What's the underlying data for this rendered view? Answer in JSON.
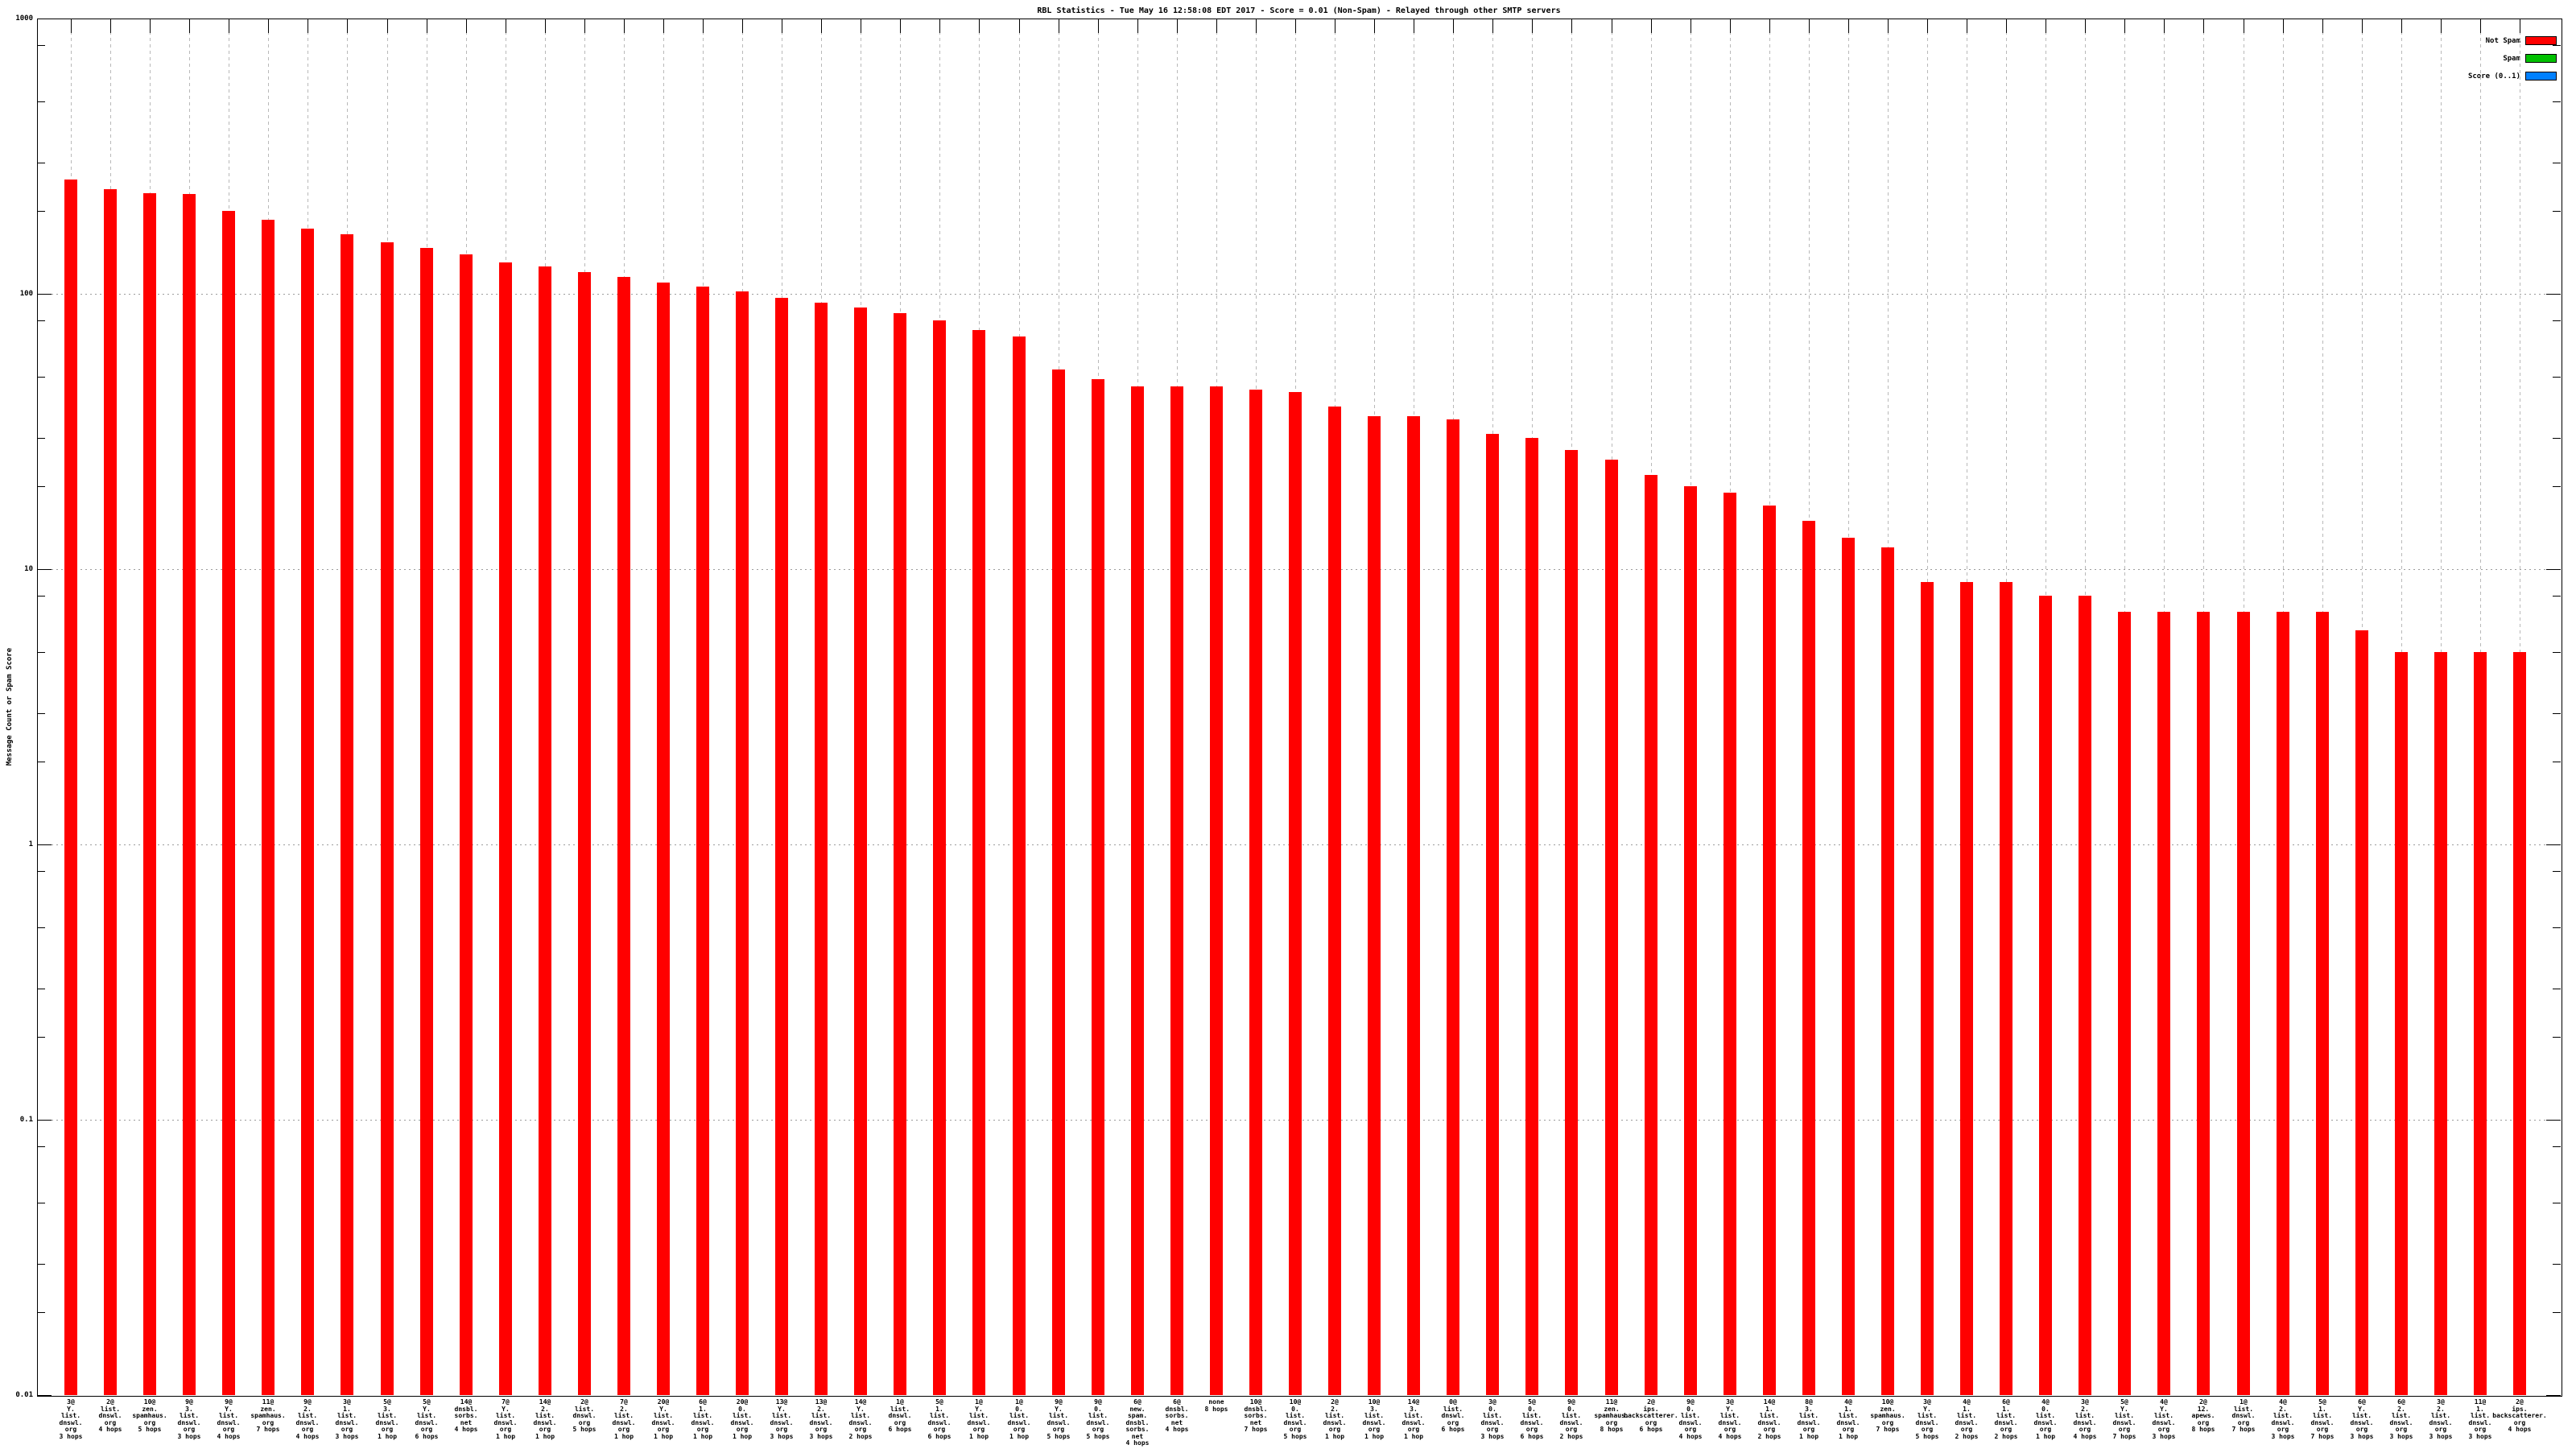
{
  "meta": {
    "background": "#ffffff"
  },
  "chart_data": {
    "type": "bar",
    "title": "RBL Statistics - Tue May 16 12:58:08 EDT 2017 - Score = 0.01 (Non-Spam) - Relayed through other SMTP servers",
    "ylabel": "Message Count or Spam Score",
    "y_scale": "log",
    "ylim": [
      0.01,
      1000
    ],
    "y_major_ticks": [
      "1000",
      "100",
      "10",
      "1",
      "0.1",
      "0.01"
    ],
    "y_minor_multipliers": [
      2,
      3,
      5,
      8
    ],
    "grid": true,
    "legend_position": "top-right-inside",
    "bar_color": "#ff0000",
    "legend": [
      {
        "label": "Not Spam",
        "color": "#ff0000"
      },
      {
        "label": "Spam",
        "color": "#00c000"
      },
      {
        "label": "Score (0..1)",
        "color": "#0080ff"
      }
    ],
    "bars": [
      {
        "lines": [
          "3@",
          "Y.",
          "list.",
          "dnswl.",
          "org",
          "3 hops"
        ],
        "value": 260
      },
      {
        "lines": [
          "2@",
          "list.",
          "dnswl.",
          "org",
          "4 hops"
        ],
        "value": 240
      },
      {
        "lines": [
          "10@",
          "zen.",
          "spamhaus.",
          "org",
          "5 hops"
        ],
        "value": 232
      },
      {
        "lines": [
          "9@",
          "3.",
          "list.",
          "dnswl.",
          "org",
          "3 hops"
        ],
        "value": 230
      },
      {
        "lines": [
          "9@",
          "Y.",
          "list.",
          "dnswl.",
          "org",
          "4 hops"
        ],
        "value": 200
      },
      {
        "lines": [
          "11@",
          "zen.",
          "spamhaus.",
          "org",
          "7 hops"
        ],
        "value": 186
      },
      {
        "lines": [
          "9@",
          "2.",
          "list.",
          "dnswl.",
          "org",
          "4 hops"
        ],
        "value": 172
      },
      {
        "lines": [
          "3@",
          "1.",
          "list.",
          "dnswl.",
          "org",
          "3 hops"
        ],
        "value": 165
      },
      {
        "lines": [
          "5@",
          "3.",
          "list.",
          "dnswl.",
          "org",
          "1 hop"
        ],
        "value": 154
      },
      {
        "lines": [
          "5@",
          "Y.",
          "list.",
          "dnswl.",
          "org",
          "6 hops"
        ],
        "value": 147
      },
      {
        "lines": [
          "14@",
          "dnsbl.",
          "sorbs.",
          "net",
          "4 hops"
        ],
        "value": 139
      },
      {
        "lines": [
          "7@",
          "Y.",
          "list.",
          "dnswl.",
          "org",
          "1 hop"
        ],
        "value": 130
      },
      {
        "lines": [
          "14@",
          "2.",
          "list.",
          "dnswl.",
          "org",
          "1 hop"
        ],
        "value": 126
      },
      {
        "lines": [
          "2@",
          "list.",
          "dnswl.",
          "org",
          "5 hops"
        ],
        "value": 120
      },
      {
        "lines": [
          "7@",
          "2.",
          "list.",
          "dnswl.",
          "org",
          "1 hop"
        ],
        "value": 115
      },
      {
        "lines": [
          "20@",
          "Y.",
          "list.",
          "dnswl.",
          "org",
          "1 hop"
        ],
        "value": 110
      },
      {
        "lines": [
          "6@",
          "1.",
          "list.",
          "dnswl.",
          "org",
          "1 hop"
        ],
        "value": 106
      },
      {
        "lines": [
          "20@",
          "0.",
          "list.",
          "dnswl.",
          "org",
          "1 hop"
        ],
        "value": 102
      },
      {
        "lines": [
          "13@",
          "Y.",
          "list.",
          "dnswl.",
          "org",
          "3 hops"
        ],
        "value": 97
      },
      {
        "lines": [
          "13@",
          "2.",
          "list.",
          "dnswl.",
          "org",
          "3 hops"
        ],
        "value": 93
      },
      {
        "lines": [
          "14@",
          "Y.",
          "list.",
          "dnswl.",
          "org",
          "2 hops"
        ],
        "value": 89
      },
      {
        "lines": [
          "1@",
          "list.",
          "dnswl.",
          "org",
          "6 hops"
        ],
        "value": 85
      },
      {
        "lines": [
          "5@",
          "1.",
          "list.",
          "dnswl.",
          "org",
          "6 hops"
        ],
        "value": 80
      },
      {
        "lines": [
          "1@",
          "Y.",
          "list.",
          "dnswl.",
          "org",
          "1 hop"
        ],
        "value": 74
      },
      {
        "lines": [
          "1@",
          "0.",
          "list.",
          "dnswl.",
          "org",
          "1 hop"
        ],
        "value": 70
      },
      {
        "lines": [
          "9@",
          "Y.",
          "list.",
          "dnswl.",
          "org",
          "5 hops"
        ],
        "value": 53
      },
      {
        "lines": [
          "9@",
          "0.",
          "list.",
          "dnswl.",
          "org",
          "5 hops"
        ],
        "value": 49
      },
      {
        "lines": [
          "6@",
          "new.",
          "spam.",
          "dnsbl.",
          "sorbs.",
          "net",
          "4 hops"
        ],
        "value": 46
      },
      {
        "lines": [
          "6@",
          "dnsbl.",
          "sorbs.",
          "net",
          "4 hops"
        ],
        "value": 46
      },
      {
        "lines": [
          "none",
          "8 hops"
        ],
        "value": 46
      },
      {
        "lines": [
          "10@",
          "dnsbl.",
          "sorbs.",
          "net",
          "7 hops"
        ],
        "value": 45
      },
      {
        "lines": [
          "10@",
          "0.",
          "list.",
          "dnswl.",
          "org",
          "5 hops"
        ],
        "value": 44
      },
      {
        "lines": [
          "2@",
          "2.",
          "list.",
          "dnswl.",
          "org",
          "1 hop"
        ],
        "value": 39
      },
      {
        "lines": [
          "10@",
          "3.",
          "list.",
          "dnswl.",
          "org",
          "1 hop"
        ],
        "value": 36
      },
      {
        "lines": [
          "14@",
          "3.",
          "list.",
          "dnswl.",
          "org",
          "1 hop"
        ],
        "value": 36
      },
      {
        "lines": [
          "0@",
          "list.",
          "dnswl.",
          "org",
          "6 hops"
        ],
        "value": 35
      },
      {
        "lines": [
          "3@",
          "0.",
          "list.",
          "dnswl.",
          "org",
          "3 hops"
        ],
        "value": 31
      },
      {
        "lines": [
          "5@",
          "0.",
          "list.",
          "dnswl.",
          "org",
          "6 hops"
        ],
        "value": 30
      },
      {
        "lines": [
          "9@",
          "0.",
          "list.",
          "dnswl.",
          "org",
          "2 hops"
        ],
        "value": 27
      },
      {
        "lines": [
          "11@",
          "zen.",
          "spamhaus.",
          "org",
          "8 hops"
        ],
        "value": 25
      },
      {
        "lines": [
          "2@",
          "ips.",
          "backscatterer.",
          "org",
          "6 hops"
        ],
        "value": 22
      },
      {
        "lines": [
          "9@",
          "0.",
          "list.",
          "dnswl.",
          "org",
          "4 hops"
        ],
        "value": 20
      },
      {
        "lines": [
          "3@",
          "Y.",
          "list.",
          "dnswl.",
          "org",
          "4 hops"
        ],
        "value": 19
      },
      {
        "lines": [
          "14@",
          "1.",
          "list.",
          "dnswl.",
          "org",
          "2 hops"
        ],
        "value": 17
      },
      {
        "lines": [
          "8@",
          "3.",
          "list.",
          "dnswl.",
          "org",
          "1 hop"
        ],
        "value": 15
      },
      {
        "lines": [
          "4@",
          "1.",
          "list.",
          "dnswl.",
          "org",
          "1 hop"
        ],
        "value": 13
      },
      {
        "lines": [
          "10@",
          "zen.",
          "spamhaus.",
          "org",
          "7 hops"
        ],
        "value": 12
      },
      {
        "lines": [
          "3@",
          "Y.",
          "list.",
          "dnswl.",
          "org",
          "5 hops"
        ],
        "value": 9
      },
      {
        "lines": [
          "4@",
          "1.",
          "list.",
          "dnswl.",
          "org",
          "2 hops"
        ],
        "value": 9
      },
      {
        "lines": [
          "6@",
          "1.",
          "list.",
          "dnswl.",
          "org",
          "2 hops"
        ],
        "value": 9
      },
      {
        "lines": [
          "4@",
          "0.",
          "list.",
          "dnswl.",
          "org",
          "1 hop"
        ],
        "value": 8
      },
      {
        "lines": [
          "3@",
          "2.",
          "list.",
          "dnswl.",
          "org",
          "4 hops"
        ],
        "value": 8
      },
      {
        "lines": [
          "5@",
          "Y.",
          "list.",
          "dnswl.",
          "org",
          "7 hops"
        ],
        "value": 7
      },
      {
        "lines": [
          "4@",
          "Y.",
          "list.",
          "dnswl.",
          "org",
          "3 hops"
        ],
        "value": 7
      },
      {
        "lines": [
          "2@",
          "12.",
          "apews.",
          "org",
          "8 hops"
        ],
        "value": 7
      },
      {
        "lines": [
          "1@",
          "list.",
          "dnswl.",
          "org",
          "7 hops"
        ],
        "value": 7
      },
      {
        "lines": [
          "4@",
          "2.",
          "list.",
          "dnswl.",
          "org",
          "3 hops"
        ],
        "value": 7
      },
      {
        "lines": [
          "5@",
          "1.",
          "list.",
          "dnswl.",
          "org",
          "7 hops"
        ],
        "value": 7
      },
      {
        "lines": [
          "6@",
          "Y.",
          "list.",
          "dnswl.",
          "org",
          "3 hops"
        ],
        "value": 6
      },
      {
        "lines": [
          "6@",
          "2.",
          "list.",
          "dnswl.",
          "org",
          "3 hops"
        ],
        "value": 5
      },
      {
        "lines": [
          "3@",
          "2.",
          "list.",
          "dnswl.",
          "org",
          "3 hops"
        ],
        "value": 5
      },
      {
        "lines": [
          "11@",
          "1.",
          "list.",
          "dnswl.",
          "org",
          "3 hops"
        ],
        "value": 5
      },
      {
        "lines": [
          "2@",
          "ips.",
          "backscatterer.",
          "org",
          "4 hops"
        ],
        "value": 5
      }
    ]
  }
}
